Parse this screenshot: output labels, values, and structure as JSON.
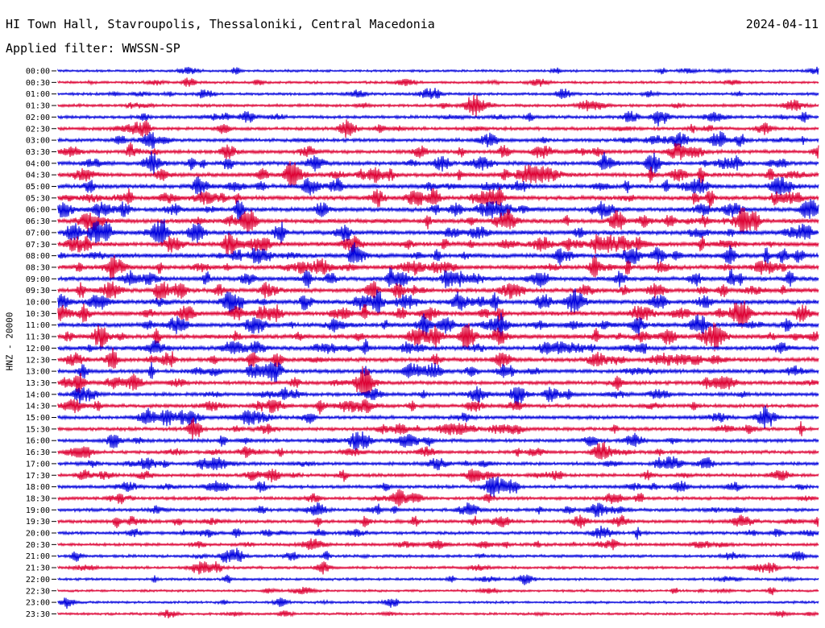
{
  "header": {
    "title": "HI Town Hall, Stavroupolis, Thessaloniki, Central Macedonia",
    "date": "2024-04-11",
    "filter": "Applied filter: WWSSN-SP"
  },
  "chart_data": {
    "type": "line",
    "ylabel": "HNZ - 20000",
    "trace_colors": [
      "#0000dd",
      "#dd0033"
    ],
    "rows": [
      "00:00",
      "00:30",
      "01:00",
      "01:30",
      "02:00",
      "02:30",
      "03:00",
      "03:30",
      "04:00",
      "04:30",
      "05:00",
      "05:30",
      "06:00",
      "06:30",
      "07:00",
      "07:30",
      "08:00",
      "08:30",
      "09:00",
      "09:30",
      "10:00",
      "10:30",
      "11:00",
      "11:30",
      "12:00",
      "12:30",
      "13:00",
      "13:30",
      "14:00",
      "14:30",
      "15:00",
      "15:30",
      "16:00",
      "16:30",
      "17:00",
      "17:30",
      "18:00",
      "18:30",
      "19:00",
      "19:30",
      "20:00",
      "20:30",
      "21:00",
      "21:30",
      "22:00",
      "22:30",
      "23:00",
      "23:30"
    ],
    "activity": [
      0.15,
      0.2,
      0.3,
      0.35,
      0.45,
      0.5,
      0.55,
      0.6,
      0.7,
      0.75,
      0.8,
      0.8,
      0.8,
      0.85,
      0.85,
      0.85,
      0.9,
      0.85,
      0.85,
      0.85,
      0.85,
      0.85,
      0.85,
      0.9,
      0.8,
      0.75,
      0.7,
      0.65,
      0.6,
      0.6,
      0.55,
      0.55,
      0.55,
      0.5,
      0.5,
      0.5,
      0.5,
      0.45,
      0.5,
      0.5,
      0.45,
      0.4,
      0.35,
      0.3,
      0.2,
      0.15,
      0.15,
      0.15
    ]
  }
}
